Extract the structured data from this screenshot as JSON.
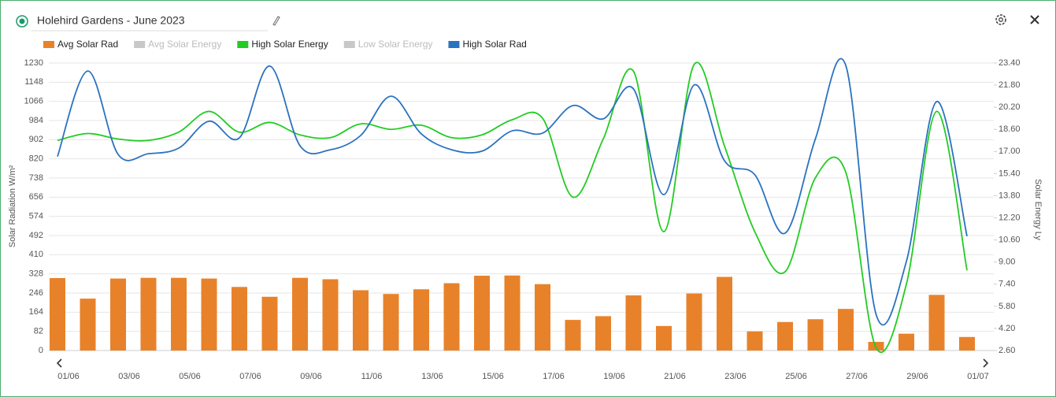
{
  "chart_data": {
    "type": "bar_line",
    "title": "Holehird Gardens - June 2023",
    "ylabel": "Solar Radiation W/m²",
    "y2label": "Solar Energy Ly",
    "categories": [
      "01/06",
      null,
      "03/06",
      null,
      "05/06",
      null,
      "07/06",
      null,
      "09/06",
      null,
      "11/06",
      null,
      "13/06",
      null,
      "15/06",
      null,
      "17/06",
      null,
      "19/06",
      null,
      "21/06",
      null,
      "23/06",
      null,
      "25/06",
      null,
      "27/06",
      null,
      "29/06",
      null,
      "01/07"
    ],
    "ylim": [
      0,
      1230
    ],
    "yticks": [
      0,
      82,
      164,
      246,
      328,
      410,
      492,
      574,
      656,
      738,
      820,
      902,
      984,
      1066,
      1148,
      1230
    ],
    "y2lim": [
      2.6,
      23.4
    ],
    "y2ticks": [
      {
        "value": 2.6,
        "label": "2.60"
      },
      {
        "value": 4.2,
        "label": "4.20"
      },
      {
        "value": 5.8,
        "label": "5.80"
      },
      {
        "value": 7.4,
        "label": "7.40"
      },
      {
        "value": 9,
        "label": "9.00"
      },
      {
        "value": 10.6,
        "label": "10.60"
      },
      {
        "value": 12.2,
        "label": "12.20"
      },
      {
        "value": 13.8,
        "label": "13.80"
      },
      {
        "value": 15.4,
        "label": "15.40"
      },
      {
        "value": 17,
        "label": "17.00"
      },
      {
        "value": 18.6,
        "label": "18.60"
      },
      {
        "value": 20.2,
        "label": "20.20"
      },
      {
        "value": 21.8,
        "label": "21.80"
      },
      {
        "value": 23.4,
        "label": "23.40"
      }
    ],
    "grid": true,
    "series": [
      {
        "name": "Avg Solar Rad",
        "type": "bar",
        "axis": "y",
        "color": "#e8822a",
        "hidden": false,
        "values": [
          310,
          222,
          308,
          311,
          311,
          308,
          272,
          230,
          311,
          305,
          258,
          242,
          262,
          288,
          320,
          321,
          284,
          131,
          147,
          236,
          105,
          244,
          315,
          82,
          122,
          134,
          178,
          37,
          72,
          238,
          58
        ]
      },
      {
        "name": "Avg Solar Energy",
        "type": "line",
        "axis": "y2",
        "color": "#c8c8c8",
        "hidden": true,
        "values": [
          null,
          null,
          null,
          null,
          null,
          null,
          null,
          null,
          null,
          null,
          null,
          null,
          null,
          null,
          null,
          null,
          null,
          null,
          null,
          null,
          null,
          null,
          null,
          null,
          null,
          null,
          null,
          null,
          null,
          null,
          null
        ]
      },
      {
        "name": "High Solar Energy",
        "type": "line",
        "axis": "y2",
        "color": "#22cc22",
        "hidden": false,
        "values": [
          17.8,
          18.3,
          17.9,
          17.8,
          18.4,
          19.9,
          18.4,
          19.1,
          18.2,
          18.0,
          19.0,
          18.6,
          18.9,
          18.0,
          18.2,
          19.3,
          19.4,
          13.7,
          17.9,
          22.8,
          11.2,
          23.3,
          17.4,
          11.2,
          8.3,
          15.1,
          15.5,
          2.8,
          7.4,
          19.9,
          8.4
        ]
      },
      {
        "name": "Low Solar Energy",
        "type": "line",
        "axis": "y2",
        "color": "#c8c8c8",
        "hidden": true,
        "values": [
          null,
          null,
          null,
          null,
          null,
          null,
          null,
          null,
          null,
          null,
          null,
          null,
          null,
          null,
          null,
          null,
          null,
          null,
          null,
          null,
          null,
          null,
          null,
          null,
          null,
          null,
          null,
          null,
          null,
          null,
          null
        ]
      },
      {
        "name": "High Solar Rad",
        "type": "line",
        "axis": "y",
        "color": "#2a72c0",
        "hidden": false,
        "values": [
          830,
          1196,
          839,
          842,
          866,
          981,
          910,
          1217,
          876,
          859,
          920,
          1088,
          927,
          859,
          853,
          940,
          930,
          1048,
          991,
          1119,
          667,
          1136,
          812,
          752,
          502,
          906,
          1220,
          155,
          381,
          1065,
          489
        ]
      }
    ]
  }
}
